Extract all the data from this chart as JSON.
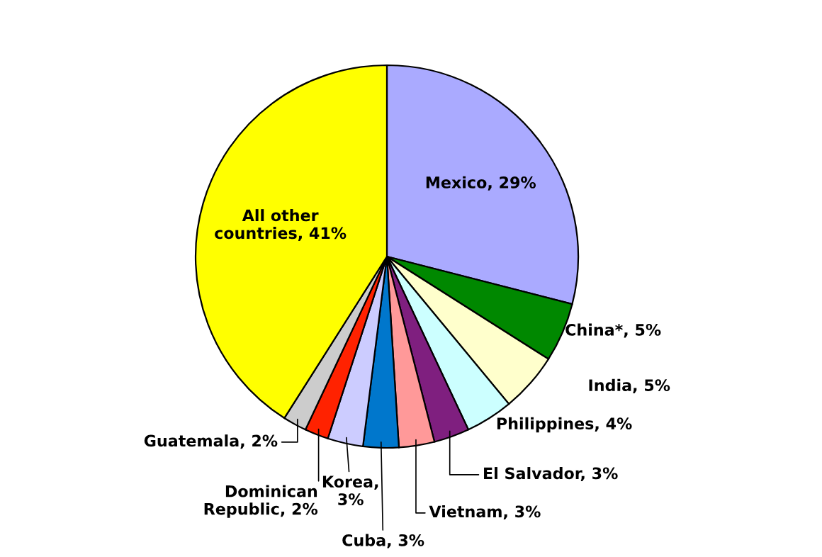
{
  "chart_data": {
    "type": "pie",
    "categories": [
      "Mexico, 29%",
      "China*, 5%",
      "India, 5%",
      "Philippines, 4%",
      "El Salvador, 3%",
      "Vietnam, 3%",
      "Cuba, 3%",
      "Korea,\n3%",
      "Dominican\nRepublic, 2%",
      "Guatemala, 2%",
      "All other\ncountries, 41%"
    ],
    "values": [
      29,
      5,
      5,
      4,
      3,
      3,
      3,
      3,
      2,
      2,
      41
    ],
    "colors": [
      "#aaaaff",
      "#008800",
      "#ffffcc",
      "#ccffff",
      "#7f1f7f",
      "#ff9999",
      "#0077cc",
      "#ccccff",
      "#ff2200",
      "#cccccc",
      "#ffff00"
    ]
  }
}
